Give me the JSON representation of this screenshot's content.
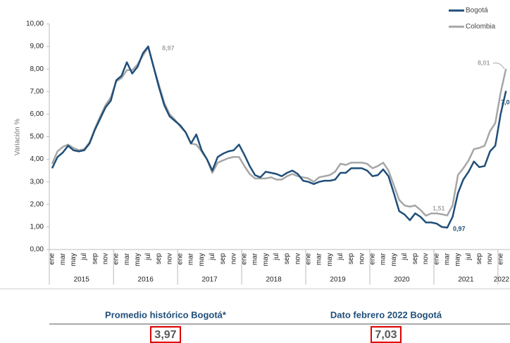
{
  "chart_data": {
    "type": "line",
    "y_label": "Variación %",
    "categories": [
      "ene",
      null,
      "mar",
      null,
      "may",
      null,
      "jul",
      null,
      "sep",
      null,
      "nov",
      null,
      "ene",
      null,
      "mar",
      null,
      "may",
      null,
      "jul",
      null,
      "sep",
      null,
      "nov",
      null,
      "ene",
      null,
      "mar",
      null,
      "may",
      null,
      "jul",
      null,
      "sep",
      null,
      "nov",
      null,
      "ene",
      null,
      "mar",
      null,
      "may",
      null,
      "jul",
      null,
      "sep",
      null,
      "nov",
      null,
      "ene",
      null,
      "mar",
      null,
      "may",
      null,
      "jul",
      null,
      "sep",
      null,
      "nov",
      null,
      "ene",
      null,
      "mar",
      null,
      "may",
      null,
      "jul",
      null,
      "sep",
      null,
      "nov",
      null,
      "ene",
      null,
      "mar",
      null,
      "may",
      null,
      "jul",
      null,
      "sep",
      null,
      "nov",
      null,
      "ene",
      null
    ],
    "years": [
      "2015",
      "2016",
      "2017",
      "2018",
      "2019",
      "2020",
      "2021",
      "2022"
    ],
    "series": [
      {
        "name": "Bogotá",
        "color": "#1f4e79",
        "values": [
          3.6,
          4.1,
          4.3,
          4.6,
          4.4,
          4.35,
          4.4,
          4.7,
          5.3,
          5.8,
          6.3,
          6.6,
          7.5,
          7.7,
          8.3,
          7.8,
          8.1,
          8.7,
          9.0,
          8.1,
          7.2,
          6.4,
          5.9,
          5.7,
          5.5,
          5.2,
          4.7,
          5.1,
          4.4,
          4.0,
          3.5,
          4.1,
          4.25,
          4.35,
          4.4,
          4.65,
          4.2,
          3.7,
          3.3,
          3.2,
          3.45,
          3.4,
          3.35,
          3.25,
          3.4,
          3.5,
          3.35,
          3.05,
          3.0,
          2.9,
          3.0,
          3.05,
          3.05,
          3.1,
          3.4,
          3.4,
          3.6,
          3.6,
          3.6,
          3.5,
          3.25,
          3.3,
          3.55,
          3.25,
          2.5,
          1.7,
          1.55,
          1.3,
          1.6,
          1.45,
          1.2,
          1.2,
          1.15,
          1.0,
          0.97,
          1.45,
          2.5,
          3.1,
          3.45,
          3.9,
          3.65,
          3.7,
          4.35,
          4.6,
          6.0,
          7.03
        ]
      },
      {
        "name": "Colombia",
        "color": "#a6a6a6",
        "values": [
          3.8,
          4.35,
          4.55,
          4.65,
          4.5,
          4.4,
          4.45,
          4.75,
          5.35,
          5.9,
          6.4,
          6.75,
          7.45,
          7.6,
          7.95,
          7.95,
          8.2,
          8.6,
          8.97,
          8.1,
          7.3,
          6.5,
          6.0,
          5.75,
          5.45,
          5.2,
          4.7,
          4.65,
          4.35,
          4.0,
          3.4,
          3.85,
          3.95,
          4.05,
          4.1,
          4.1,
          3.7,
          3.35,
          3.15,
          3.15,
          3.15,
          3.2,
          3.1,
          3.1,
          3.25,
          3.35,
          3.25,
          3.2,
          3.15,
          3.0,
          3.2,
          3.25,
          3.3,
          3.45,
          3.8,
          3.75,
          3.85,
          3.85,
          3.85,
          3.8,
          3.6,
          3.7,
          3.85,
          3.5,
          2.85,
          2.2,
          1.95,
          1.9,
          1.95,
          1.75,
          1.5,
          1.6,
          1.6,
          1.56,
          1.51,
          1.95,
          3.3,
          3.6,
          3.95,
          4.45,
          4.5,
          4.6,
          5.25,
          5.6,
          6.95,
          8.01
        ]
      }
    ],
    "ylim": [
      0,
      10
    ],
    "yticks": [
      {
        "value": 0,
        "label": "0,00"
      },
      {
        "value": 1,
        "label": "1,00"
      },
      {
        "value": 2,
        "label": "2,00"
      },
      {
        "value": 3,
        "label": "3,00"
      },
      {
        "value": 4,
        "label": "4,00"
      },
      {
        "value": 5,
        "label": "5,00"
      },
      {
        "value": 6,
        "label": "6,00"
      },
      {
        "value": 7,
        "label": "7,00"
      },
      {
        "value": 8,
        "label": "8,00"
      },
      {
        "value": 9,
        "label": "9,00"
      },
      {
        "value": 10,
        "label": "10,00"
      }
    ],
    "annotations": [
      "8,97",
      "8,01",
      "7,0",
      "1,51",
      "0,97"
    ],
    "legend": "top-right"
  },
  "summary": [
    {
      "label": "Promedio histórico Bogotá*",
      "value": "3,97"
    },
    {
      "label": "Dato febrero 2022 Bogotá",
      "value": "7,03"
    }
  ]
}
